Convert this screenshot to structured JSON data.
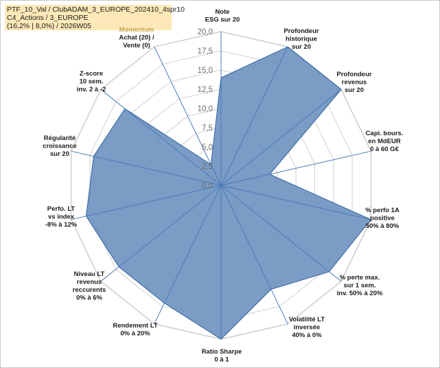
{
  "title_lines": [
    "PTF_10_Val / ClubADAM_3_EUROPE_202410_4spr10",
    "C4_Actions / 3_EUROPE",
    "(16,2% | 8,0%) / 2026W05"
  ],
  "colors": {
    "fill": "#6f94c0",
    "stroke": "#2e5f9e",
    "grid": "#cfcfcf",
    "spoke": "#4a7ab8",
    "title_bg": "#fde9b8",
    "momentum_label": "#c9a24a"
  },
  "chart_data": {
    "type": "radar",
    "axes": [
      [
        "Note",
        "ESG sur 20"
      ],
      [
        "Profondeur",
        "historique",
        "sur 20"
      ],
      [
        "Profondeur",
        "revenus",
        "sur 20"
      ],
      [
        "Capi. bours.",
        "en MdEUR",
        "0 à 60 G€"
      ],
      [
        "% perfo 1A",
        "positive",
        "50% à 80%"
      ],
      [
        "% perte max.",
        "sur 1 sem.",
        "inv. 50% à 20%"
      ],
      [
        "Volatilité LT",
        "inversée",
        "40% à 0%"
      ],
      [
        "Ratio Sharpe",
        "0 à 1"
      ],
      [
        "Rendement LT",
        "0% à 20%"
      ],
      [
        "Niveau LT",
        "revenus",
        "reccurents",
        "0% à 6%"
      ],
      [
        "Perfo. LT",
        "vs index",
        "-8% à 12%"
      ],
      [
        "Régularité",
        "croissance",
        "sur 20"
      ],
      [
        "Z-score",
        "10 sem.",
        "inv. 2 à -2"
      ],
      [
        "Momentum",
        "Achat (20) /",
        "Vente (0)"
      ]
    ],
    "values": [
      14,
      20,
      20,
      6.5,
      20,
      18,
      15,
      20,
      17,
      17,
      18,
      17,
      16,
      3
    ],
    "range": [
      0,
      20
    ],
    "ticks": [
      "0,0",
      "2,5",
      "5,0",
      "7,5",
      "10,0",
      "12,5",
      "15,0",
      "17,5",
      "20,0"
    ],
    "tick_values": [
      0,
      2.5,
      5,
      7.5,
      10,
      12.5,
      15,
      17.5,
      20
    ],
    "grid": true
  }
}
